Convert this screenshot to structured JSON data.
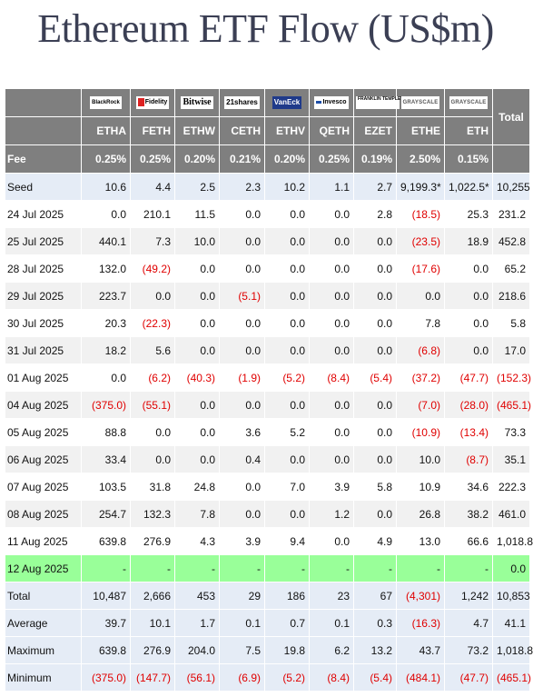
{
  "title": "Ethereum ETF Flow (US$m)",
  "logos": [
    {
      "icon": "blackrock-logo",
      "text": "BlackRock"
    },
    {
      "icon": "fidelity-logo",
      "text": "Fidelity"
    },
    {
      "icon": "bitwise-logo",
      "text": "Bitwise"
    },
    {
      "icon": "21shares-logo",
      "text": "21shares"
    },
    {
      "icon": "vaneck-logo",
      "text": "VanEck"
    },
    {
      "icon": "invesco-logo",
      "text": "Invesco"
    },
    {
      "icon": "franklin-templeton-logo",
      "text": "FRANKLIN TEMPLETON"
    },
    {
      "icon": "grayscale-logo",
      "text": "GRAYSCALE"
    },
    {
      "icon": "grayscale-logo",
      "text": "GRAYSCALE"
    }
  ],
  "total_label": "Total",
  "tickers": [
    "ETHA",
    "FETH",
    "ETHW",
    "CETH",
    "ETHV",
    "QETH",
    "EZET",
    "ETHE",
    "ETH"
  ],
  "fee": {
    "label": "Fee",
    "values": [
      "0.25%",
      "0.25%",
      "0.20%",
      "0.21%",
      "0.20%",
      "0.25%",
      "0.19%",
      "2.50%",
      "0.15%"
    ]
  },
  "seed": {
    "label": "Seed",
    "values": [
      "10.6",
      "4.4",
      "2.5",
      "2.3",
      "10.2",
      "1.1",
      "2.7",
      "9,199.3*",
      "1,022.5*"
    ],
    "total": "10,255"
  },
  "rows": [
    {
      "date": "24 Jul 2025",
      "values": [
        "0.0",
        "210.1",
        "11.5",
        "0.0",
        "0.0",
        "0.0",
        "2.8",
        "(18.5)",
        "25.3"
      ],
      "total": "231.2"
    },
    {
      "date": "25 Jul 2025",
      "values": [
        "440.1",
        "7.3",
        "10.0",
        "0.0",
        "0.0",
        "0.0",
        "0.0",
        "(23.5)",
        "18.9"
      ],
      "total": "452.8"
    },
    {
      "date": "28 Jul 2025",
      "values": [
        "132.0",
        "(49.2)",
        "0.0",
        "0.0",
        "0.0",
        "0.0",
        "0.0",
        "(17.6)",
        "0.0"
      ],
      "total": "65.2"
    },
    {
      "date": "29 Jul 2025",
      "values": [
        "223.7",
        "0.0",
        "0.0",
        "(5.1)",
        "0.0",
        "0.0",
        "0.0",
        "0.0",
        "0.0"
      ],
      "total": "218.6"
    },
    {
      "date": "30 Jul 2025",
      "values": [
        "20.3",
        "(22.3)",
        "0.0",
        "0.0",
        "0.0",
        "0.0",
        "0.0",
        "7.8",
        "0.0"
      ],
      "total": "5.8"
    },
    {
      "date": "31 Jul 2025",
      "values": [
        "18.2",
        "5.6",
        "0.0",
        "0.0",
        "0.0",
        "0.0",
        "0.0",
        "(6.8)",
        "0.0"
      ],
      "total": "17.0"
    },
    {
      "date": "01 Aug 2025",
      "values": [
        "0.0",
        "(6.2)",
        "(40.3)",
        "(1.9)",
        "(5.2)",
        "(8.4)",
        "(5.4)",
        "(37.2)",
        "(47.7)"
      ],
      "total": "(152.3)"
    },
    {
      "date": "04 Aug 2025",
      "values": [
        "(375.0)",
        "(55.1)",
        "0.0",
        "0.0",
        "0.0",
        "0.0",
        "0.0",
        "(7.0)",
        "(28.0)"
      ],
      "total": "(465.1)"
    },
    {
      "date": "05 Aug 2025",
      "values": [
        "88.8",
        "0.0",
        "0.0",
        "3.6",
        "5.2",
        "0.0",
        "0.0",
        "(10.9)",
        "(13.4)"
      ],
      "total": "73.3"
    },
    {
      "date": "06 Aug 2025",
      "values": [
        "33.4",
        "0.0",
        "0.0",
        "0.4",
        "0.0",
        "0.0",
        "0.0",
        "10.0",
        "(8.7)"
      ],
      "total": "35.1"
    },
    {
      "date": "07 Aug 2025",
      "values": [
        "103.5",
        "31.8",
        "24.8",
        "0.0",
        "7.0",
        "3.9",
        "5.8",
        "10.9",
        "34.6"
      ],
      "total": "222.3"
    },
    {
      "date": "08 Aug 2025",
      "values": [
        "254.7",
        "132.3",
        "7.8",
        "0.0",
        "0.0",
        "1.2",
        "0.0",
        "26.8",
        "38.2"
      ],
      "total": "461.0"
    },
    {
      "date": "11 Aug 2025",
      "values": [
        "639.8",
        "276.9",
        "4.3",
        "3.9",
        "9.4",
        "0.0",
        "4.9",
        "13.0",
        "66.6"
      ],
      "total": "1,018.8"
    }
  ],
  "today": {
    "date": "12 Aug 2025",
    "values": [
      "-",
      "-",
      "-",
      "-",
      "-",
      "-",
      "-",
      "-",
      "-"
    ],
    "total": "0.0"
  },
  "summary": [
    {
      "label": "Total",
      "values": [
        "10,487",
        "2,666",
        "453",
        "29",
        "186",
        "23",
        "67",
        "(4,301)",
        "1,242"
      ],
      "total": "10,853"
    },
    {
      "label": "Average",
      "values": [
        "39.7",
        "10.1",
        "1.7",
        "0.1",
        "0.7",
        "0.1",
        "0.3",
        "(16.3)",
        "4.7"
      ],
      "total": "41.1"
    },
    {
      "label": "Maximum",
      "values": [
        "639.8",
        "276.9",
        "204.0",
        "7.5",
        "19.8",
        "6.2",
        "13.2",
        "43.7",
        "73.2"
      ],
      "total": "1,018.8"
    },
    {
      "label": "Minimum",
      "values": [
        "(375.0)",
        "(147.7)",
        "(56.1)",
        "(6.9)",
        "(5.2)",
        "(8.4)",
        "(5.4)",
        "(484.1)",
        "(47.7)"
      ],
      "total": "(465.1)"
    }
  ],
  "colors": {
    "header_gray": "#7f7f7f",
    "seed_summary": "#e5ecf6",
    "today_green": "#99ff99",
    "negative_red": "#e00000",
    "title": "#3b3f54"
  }
}
